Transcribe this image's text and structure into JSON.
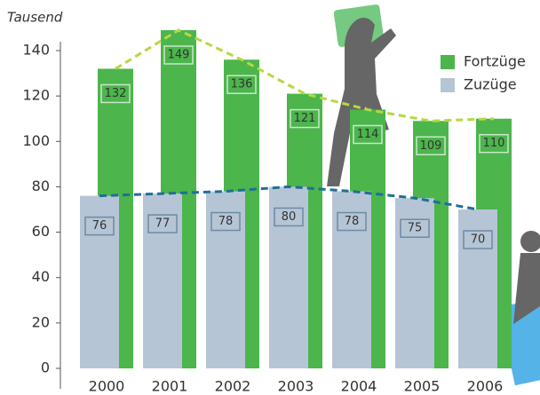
{
  "chart_data": {
    "type": "bar",
    "y_label": "Tausend",
    "categories": [
      "2000",
      "2001",
      "2002",
      "2003",
      "2004",
      "2005",
      "2006"
    ],
    "series": [
      {
        "name": "Fortzüge",
        "color": "#4cb54c",
        "trend_color": "#b5d940",
        "values": [
          132,
          149,
          136,
          121,
          114,
          109,
          110
        ]
      },
      {
        "name": "Zuzüge",
        "color": "#b5c5d6",
        "trend_color": "#1f6f99",
        "values": [
          76,
          77,
          78,
          80,
          78,
          75,
          70
        ]
      }
    ],
    "ylim": [
      0,
      140
    ],
    "yticks": [
      0,
      20,
      40,
      60,
      80,
      100,
      120,
      140
    ],
    "legend": "top-right"
  }
}
